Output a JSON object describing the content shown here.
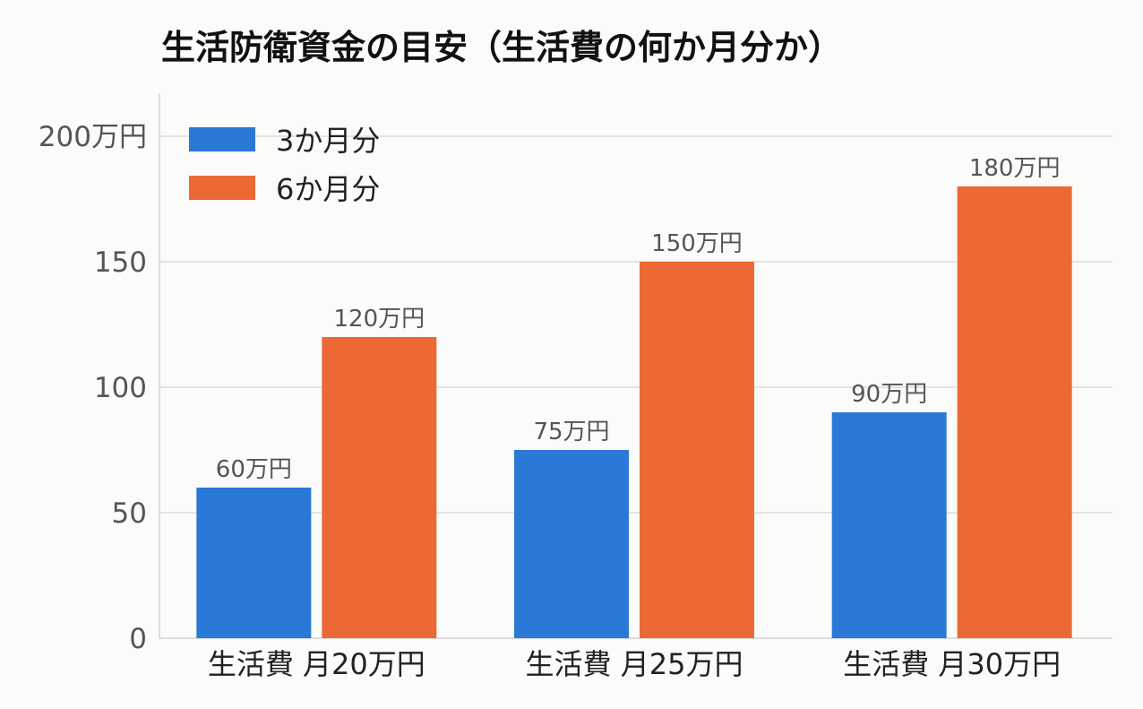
{
  "colors": {
    "series_3m": "#2a79d6",
    "series_6m": "#ec6936",
    "grid": "#e3e3e3",
    "axis": "#dddddd"
  },
  "chart_data": {
    "type": "bar",
    "title": "生活防衛資金の目安（生活費の何か月分か）",
    "xlabel": "",
    "ylabel": "",
    "categories": [
      "生活費 月20万円",
      "生活費 月25万円",
      "生活費 月30万円"
    ],
    "series": [
      {
        "name": "3か月分",
        "values": [
          60,
          75,
          90
        ],
        "data_labels": [
          "60万円",
          "75万円",
          "90万円"
        ]
      },
      {
        "name": "6か月分",
        "values": [
          120,
          150,
          180
        ],
        "data_labels": [
          "120万円",
          "150万円",
          "180万円"
        ]
      }
    ],
    "ylim": [
      0,
      200
    ],
    "yticks": [
      0,
      50,
      100,
      150,
      200
    ],
    "ytick_labels": [
      "0",
      "50",
      "100",
      "150",
      "200万円"
    ],
    "grid": true,
    "legend_position": "top-left"
  }
}
